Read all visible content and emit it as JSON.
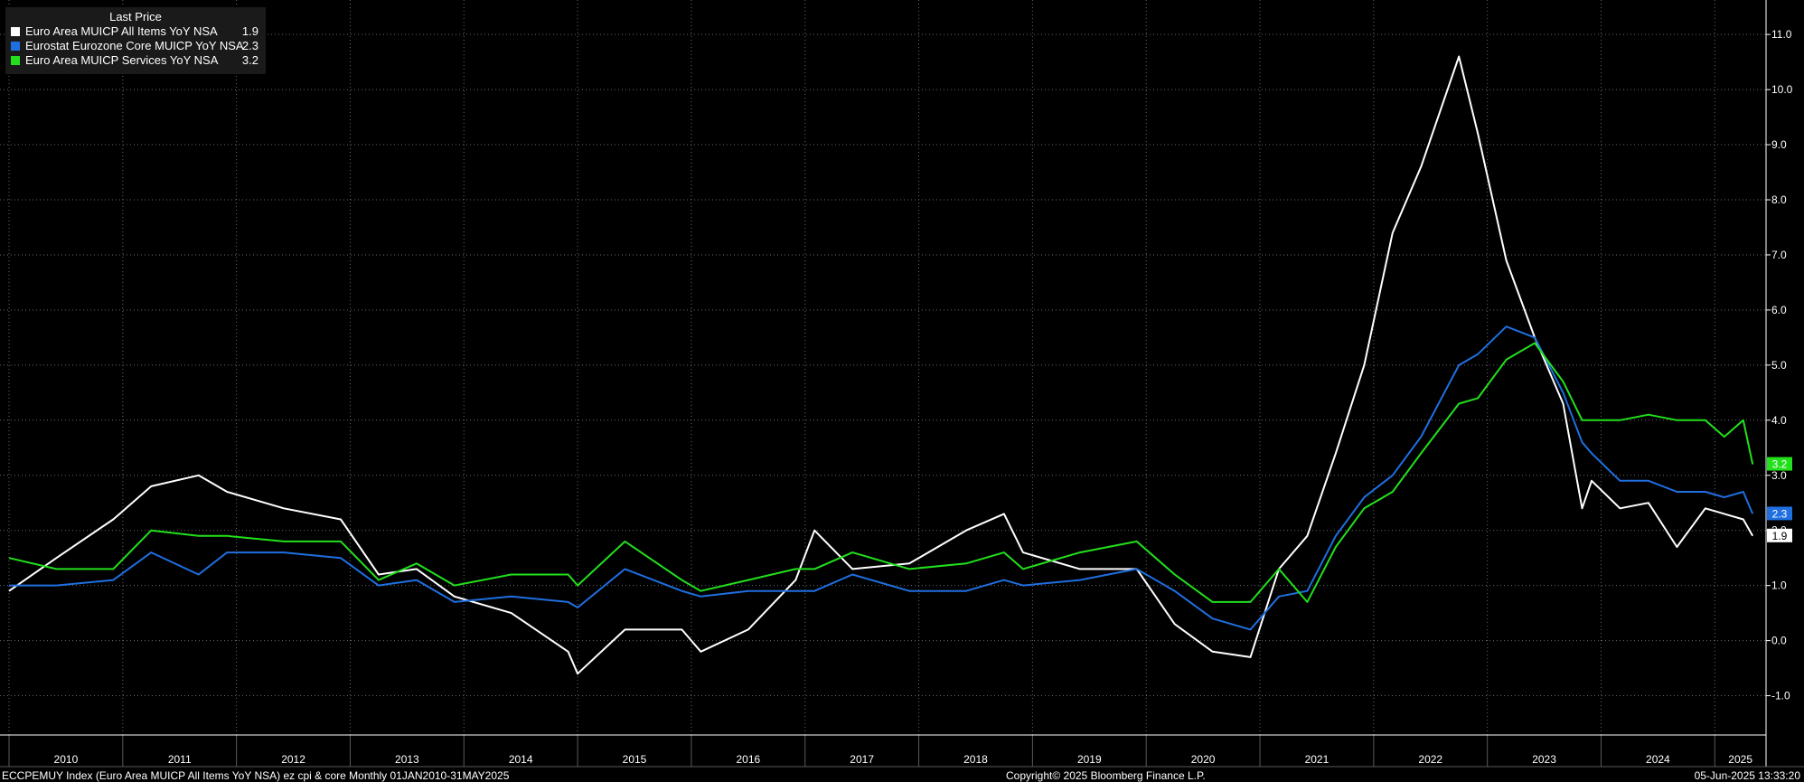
{
  "legend": {
    "title": "Last Price",
    "items": [
      {
        "name": "Euro Area MUICP All Items YoY NSA",
        "value": "1.9",
        "color": "#ffffff"
      },
      {
        "name": "Eurostat Eurozone Core MUICP YoY NSA",
        "value": "2.3",
        "color": "#1f6fe0"
      },
      {
        "name": "Euro Area MUICP Services YoY NSA",
        "value": "3.2",
        "color": "#22e01c"
      }
    ]
  },
  "footer": {
    "left": "ECCPEMUY Index (Euro Area MUICP All Items YoY NSA) ez cpi & core  Monthly 01JAN2010-31MAY2025",
    "center": "Copyright© 2025 Bloomberg Finance L.P.",
    "right": "05-Jun-2025 13:33:20"
  },
  "chart_data": {
    "type": "line",
    "x_range": [
      "2010-01",
      "2025-05"
    ],
    "ylim": [
      -1.5,
      11.5
    ],
    "y_ticks": [
      "-1.0",
      "0.0",
      "1.0",
      "2.0",
      "3.0",
      "4.0",
      "5.0",
      "6.0",
      "7.0",
      "8.0",
      "9.0",
      "10.0",
      "11.0"
    ],
    "x_ticks": [
      "2010",
      "2011",
      "2012",
      "2013",
      "2014",
      "2015",
      "2016",
      "2017",
      "2018",
      "2019",
      "2020",
      "2021",
      "2022",
      "2023",
      "2024",
      "2025"
    ],
    "grid": true,
    "legend_position": "top-left",
    "series": [
      {
        "name": "Euro Area MUICP All Items YoY NSA",
        "color": "#ffffff",
        "last_label": "1.9",
        "points": [
          [
            "2010-01",
            0.9
          ],
          [
            "2010-06",
            1.5
          ],
          [
            "2010-12",
            2.2
          ],
          [
            "2011-04",
            2.8
          ],
          [
            "2011-09",
            3.0
          ],
          [
            "2011-12",
            2.7
          ],
          [
            "2012-06",
            2.4
          ],
          [
            "2012-12",
            2.2
          ],
          [
            "2013-04",
            1.2
          ],
          [
            "2013-08",
            1.3
          ],
          [
            "2013-12",
            0.8
          ],
          [
            "2014-06",
            0.5
          ],
          [
            "2014-12",
            -0.2
          ],
          [
            "2015-01",
            -0.6
          ],
          [
            "2015-06",
            0.2
          ],
          [
            "2015-12",
            0.2
          ],
          [
            "2016-02",
            -0.2
          ],
          [
            "2016-07",
            0.2
          ],
          [
            "2016-12",
            1.1
          ],
          [
            "2017-02",
            2.0
          ],
          [
            "2017-06",
            1.3
          ],
          [
            "2017-12",
            1.4
          ],
          [
            "2018-06",
            2.0
          ],
          [
            "2018-10",
            2.3
          ],
          [
            "2018-12",
            1.6
          ],
          [
            "2019-06",
            1.3
          ],
          [
            "2019-12",
            1.3
          ],
          [
            "2020-04",
            0.3
          ],
          [
            "2020-08",
            -0.2
          ],
          [
            "2020-12",
            -0.3
          ],
          [
            "2021-03",
            1.3
          ],
          [
            "2021-06",
            1.9
          ],
          [
            "2021-09",
            3.4
          ],
          [
            "2021-12",
            5.0
          ],
          [
            "2022-03",
            7.4
          ],
          [
            "2022-06",
            8.6
          ],
          [
            "2022-10",
            10.6
          ],
          [
            "2022-12",
            9.2
          ],
          [
            "2023-03",
            6.9
          ],
          [
            "2023-06",
            5.5
          ],
          [
            "2023-09",
            4.3
          ],
          [
            "2023-11",
            2.4
          ],
          [
            "2023-12",
            2.9
          ],
          [
            "2024-03",
            2.4
          ],
          [
            "2024-06",
            2.5
          ],
          [
            "2024-09",
            1.7
          ],
          [
            "2024-12",
            2.4
          ],
          [
            "2025-02",
            2.3
          ],
          [
            "2025-04",
            2.2
          ],
          [
            "2025-05",
            1.9
          ]
        ]
      },
      {
        "name": "Eurostat Eurozone Core MUICP YoY NSA",
        "color": "#1f6fe0",
        "last_label": "2.3",
        "points": [
          [
            "2010-01",
            1.0
          ],
          [
            "2010-06",
            1.0
          ],
          [
            "2010-12",
            1.1
          ],
          [
            "2011-04",
            1.6
          ],
          [
            "2011-09",
            1.2
          ],
          [
            "2011-12",
            1.6
          ],
          [
            "2012-06",
            1.6
          ],
          [
            "2012-12",
            1.5
          ],
          [
            "2013-04",
            1.0
          ],
          [
            "2013-08",
            1.1
          ],
          [
            "2013-12",
            0.7
          ],
          [
            "2014-06",
            0.8
          ],
          [
            "2014-12",
            0.7
          ],
          [
            "2015-01",
            0.6
          ],
          [
            "2015-06",
            1.3
          ],
          [
            "2015-12",
            0.9
          ],
          [
            "2016-02",
            0.8
          ],
          [
            "2016-07",
            0.9
          ],
          [
            "2016-12",
            0.9
          ],
          [
            "2017-02",
            0.9
          ],
          [
            "2017-06",
            1.2
          ],
          [
            "2017-12",
            0.9
          ],
          [
            "2018-06",
            0.9
          ],
          [
            "2018-10",
            1.1
          ],
          [
            "2018-12",
            1.0
          ],
          [
            "2019-06",
            1.1
          ],
          [
            "2019-12",
            1.3
          ],
          [
            "2020-04",
            0.9
          ],
          [
            "2020-08",
            0.4
          ],
          [
            "2020-12",
            0.2
          ],
          [
            "2021-03",
            0.8
          ],
          [
            "2021-06",
            0.9
          ],
          [
            "2021-09",
            1.9
          ],
          [
            "2021-12",
            2.6
          ],
          [
            "2022-03",
            3.0
          ],
          [
            "2022-06",
            3.7
          ],
          [
            "2022-10",
            5.0
          ],
          [
            "2022-12",
            5.2
          ],
          [
            "2023-03",
            5.7
          ],
          [
            "2023-06",
            5.5
          ],
          [
            "2023-09",
            4.5
          ],
          [
            "2023-11",
            3.6
          ],
          [
            "2023-12",
            3.4
          ],
          [
            "2024-03",
            2.9
          ],
          [
            "2024-06",
            2.9
          ],
          [
            "2024-09",
            2.7
          ],
          [
            "2024-12",
            2.7
          ],
          [
            "2025-02",
            2.6
          ],
          [
            "2025-04",
            2.7
          ],
          [
            "2025-05",
            2.3
          ]
        ]
      },
      {
        "name": "Euro Area MUICP Services YoY NSA",
        "color": "#22e01c",
        "last_label": "3.2",
        "points": [
          [
            "2010-01",
            1.5
          ],
          [
            "2010-06",
            1.3
          ],
          [
            "2010-12",
            1.3
          ],
          [
            "2011-04",
            2.0
          ],
          [
            "2011-09",
            1.9
          ],
          [
            "2011-12",
            1.9
          ],
          [
            "2012-06",
            1.8
          ],
          [
            "2012-12",
            1.8
          ],
          [
            "2013-04",
            1.1
          ],
          [
            "2013-08",
            1.4
          ],
          [
            "2013-12",
            1.0
          ],
          [
            "2014-06",
            1.2
          ],
          [
            "2014-12",
            1.2
          ],
          [
            "2015-01",
            1.0
          ],
          [
            "2015-06",
            1.8
          ],
          [
            "2015-12",
            1.1
          ],
          [
            "2016-02",
            0.9
          ],
          [
            "2016-07",
            1.1
          ],
          [
            "2016-12",
            1.3
          ],
          [
            "2017-02",
            1.3
          ],
          [
            "2017-06",
            1.6
          ],
          [
            "2017-12",
            1.3
          ],
          [
            "2018-06",
            1.4
          ],
          [
            "2018-10",
            1.6
          ],
          [
            "2018-12",
            1.3
          ],
          [
            "2019-06",
            1.6
          ],
          [
            "2019-12",
            1.8
          ],
          [
            "2020-04",
            1.2
          ],
          [
            "2020-08",
            0.7
          ],
          [
            "2020-12",
            0.7
          ],
          [
            "2021-03",
            1.3
          ],
          [
            "2021-06",
            0.7
          ],
          [
            "2021-09",
            1.7
          ],
          [
            "2021-12",
            2.4
          ],
          [
            "2022-03",
            2.7
          ],
          [
            "2022-06",
            3.4
          ],
          [
            "2022-10",
            4.3
          ],
          [
            "2022-12",
            4.4
          ],
          [
            "2023-03",
            5.1
          ],
          [
            "2023-06",
            5.4
          ],
          [
            "2023-09",
            4.7
          ],
          [
            "2023-11",
            4.0
          ],
          [
            "2023-12",
            4.0
          ],
          [
            "2024-03",
            4.0
          ],
          [
            "2024-06",
            4.1
          ],
          [
            "2024-09",
            4.0
          ],
          [
            "2024-12",
            4.0
          ],
          [
            "2025-02",
            3.7
          ],
          [
            "2025-04",
            4.0
          ],
          [
            "2025-05",
            3.2
          ]
        ]
      }
    ]
  }
}
